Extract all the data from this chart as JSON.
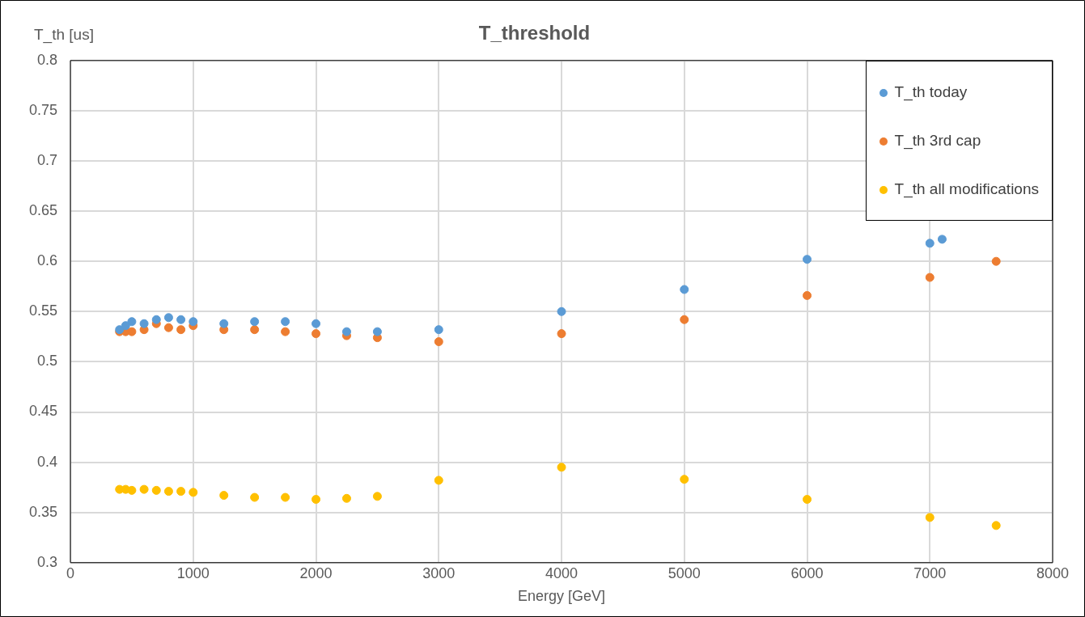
{
  "chart_data": {
    "type": "scatter",
    "title": "T_threshold",
    "xlabel": "Energy [GeV]",
    "ylabel": "T_th [us]",
    "xlim": [
      0,
      8000
    ],
    "xticks": [
      0,
      1000,
      2000,
      3000,
      4000,
      5000,
      6000,
      7000,
      8000
    ],
    "ylim": [
      0.3,
      0.8
    ],
    "yticks": [
      0.3,
      0.35,
      0.4,
      0.45,
      0.5,
      0.55,
      0.6,
      0.65,
      0.7,
      0.75,
      0.8
    ],
    "grid": true,
    "legend": "top right",
    "marker": "circle",
    "series": [
      {
        "name": "T_th today",
        "color": "#5b9bd5",
        "x": [
          400,
          450,
          500,
          600,
          700,
          800,
          900,
          1000,
          1250,
          1500,
          1750,
          2000,
          2250,
          2500,
          3000,
          4000,
          5000,
          6000,
          7000,
          7100
        ],
        "values": [
          0.532,
          0.536,
          0.54,
          0.538,
          0.542,
          0.544,
          0.542,
          0.54,
          0.538,
          0.54,
          0.54,
          0.538,
          0.53,
          0.53,
          0.532,
          0.55,
          0.572,
          0.602,
          0.618,
          0.622
        ]
      },
      {
        "name": "T_th 3rd cap",
        "color": "#ed7d31",
        "x": [
          400,
          450,
          500,
          600,
          700,
          800,
          900,
          1000,
          1250,
          1500,
          1750,
          2000,
          2250,
          2500,
          3000,
          4000,
          5000,
          6000,
          7000,
          7540
        ],
        "values": [
          0.53,
          0.53,
          0.53,
          0.532,
          0.538,
          0.534,
          0.532,
          0.536,
          0.532,
          0.532,
          0.53,
          0.528,
          0.526,
          0.524,
          0.52,
          0.528,
          0.542,
          0.566,
          0.584,
          0.6
        ]
      },
      {
        "name": "T_th all modifications",
        "color": "#ffc000",
        "x": [
          400,
          450,
          500,
          600,
          700,
          800,
          900,
          1000,
          1250,
          1500,
          1750,
          2000,
          2250,
          2500,
          3000,
          4000,
          5000,
          6000,
          7000,
          7540
        ],
        "values": [
          0.373,
          0.373,
          0.372,
          0.373,
          0.372,
          0.371,
          0.371,
          0.37,
          0.367,
          0.365,
          0.365,
          0.363,
          0.364,
          0.366,
          0.382,
          0.395,
          0.383,
          0.363,
          0.345,
          0.337
        ]
      }
    ]
  }
}
